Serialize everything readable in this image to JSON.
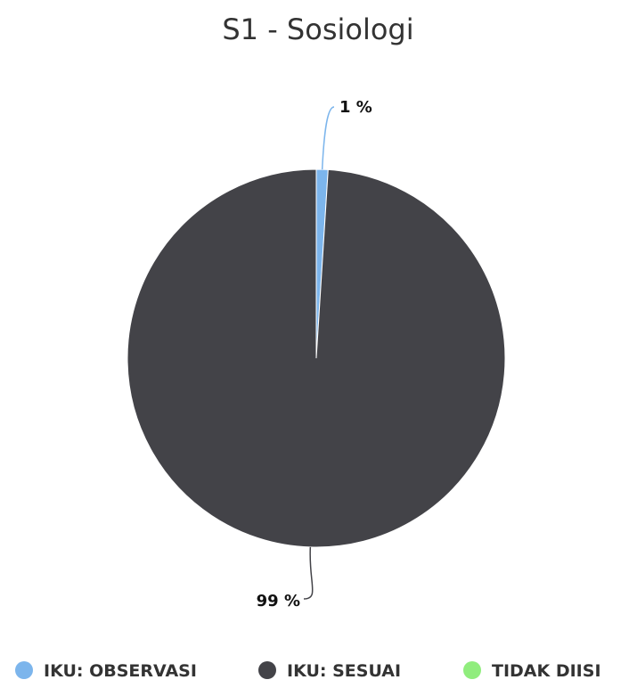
{
  "chart_data": {
    "type": "pie",
    "title": "S1 - Sosiologi",
    "slices": [
      {
        "name": "IKU: OBSERVASI",
        "value": 1,
        "label": "1 %",
        "color": "#7cb5ec"
      },
      {
        "name": "IKU: SESUAI",
        "value": 99,
        "label": "99 %",
        "color": "#434348"
      },
      {
        "name": "TIDAK DIISI",
        "value": 0,
        "label": "",
        "color": "#90ed7d"
      }
    ],
    "legend_position": "bottom"
  }
}
